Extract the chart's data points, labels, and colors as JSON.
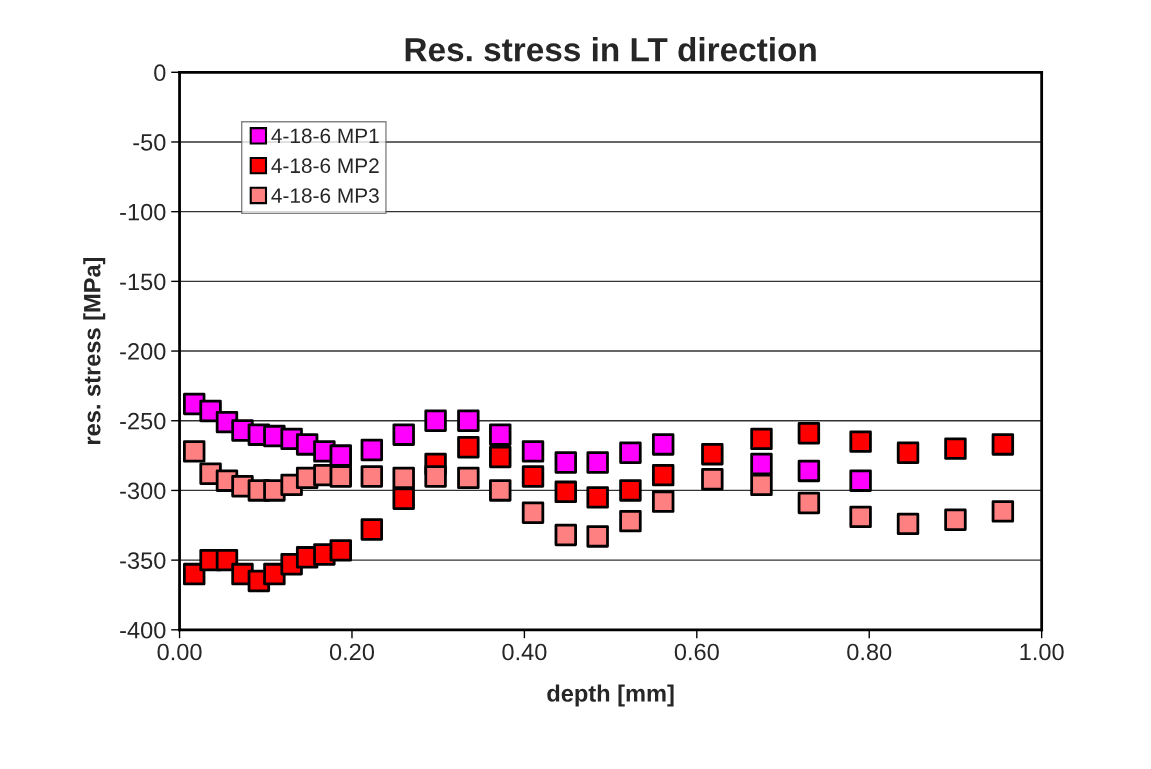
{
  "chart_data": {
    "type": "scatter",
    "title": "Res. stress in LT direction",
    "xlabel": "depth [mm]",
    "ylabel": "res. stress [MPa]",
    "xlim": [
      0,
      1
    ],
    "xticks": [
      {
        "value": 0,
        "label": "0.00"
      },
      {
        "value": 0.2,
        "label": "0.20"
      },
      {
        "value": 0.4,
        "label": "0.40"
      },
      {
        "value": 0.6,
        "label": "0.60"
      },
      {
        "value": 0.8,
        "label": "0.80"
      },
      {
        "value": 1,
        "label": "1.00"
      }
    ],
    "ylim": [
      -400,
      0
    ],
    "yticks": [
      -400,
      -350,
      -300,
      -250,
      -200,
      -150,
      -100,
      -50,
      0
    ],
    "grid": "y",
    "legend": "top left",
    "marker": "square",
    "series": [
      {
        "name": "4-18-6 MP1",
        "color": "#ff00ff",
        "x": [
          0.017,
          0.036,
          0.055,
          0.073,
          0.092,
          0.11,
          0.13,
          0.148,
          0.168,
          0.187,
          0.223,
          0.26,
          0.297,
          0.335,
          0.372,
          0.41,
          0.448,
          0.485,
          0.523,
          0.561,
          0.618,
          0.675,
          0.73,
          0.79
        ],
        "values": [
          -238,
          -243,
          -251,
          -257,
          -260,
          -261,
          -263,
          -267,
          -272,
          -275,
          -271,
          -260,
          -250,
          -250,
          -260,
          -272,
          -280,
          -280,
          -273,
          -267,
          null,
          -281,
          -286,
          -293
        ]
      },
      {
        "name": "4-18-6 MP2",
        "color": "#ff0000",
        "x": [
          0.017,
          0.036,
          0.055,
          0.073,
          0.092,
          0.11,
          0.13,
          0.148,
          0.168,
          0.187,
          0.223,
          0.26,
          0.297,
          0.335,
          0.372,
          0.41,
          0.448,
          0.485,
          0.523,
          0.561,
          0.618,
          0.675,
          0.73,
          0.79,
          0.845,
          0.9,
          0.955
        ],
        "values": [
          -360,
          -350,
          -350,
          -360,
          -365,
          -360,
          -353,
          -348,
          -346,
          -343,
          -328,
          -306,
          -281,
          -269,
          -276,
          -290,
          -301,
          -305,
          -300,
          -289,
          -274,
          -263,
          -259,
          -265,
          -273,
          -270,
          -267
        ]
      },
      {
        "name": "4-18-6 MP3",
        "color": "#ff8080",
        "x": [
          0.017,
          0.036,
          0.055,
          0.073,
          0.092,
          0.11,
          0.13,
          0.148,
          0.168,
          0.187,
          0.223,
          0.26,
          0.297,
          0.335,
          0.372,
          0.41,
          0.448,
          0.485,
          0.523,
          0.561,
          0.618,
          0.675,
          0.73,
          0.79,
          0.845,
          0.9,
          0.955
        ],
        "values": [
          -272,
          -288,
          -293,
          -297,
          -300,
          -300,
          -296,
          -291,
          -289,
          -290,
          -290,
          -291,
          -290,
          -291,
          -300,
          -316,
          -332,
          -333,
          -322,
          -308,
          -292,
          -296,
          -309,
          -319,
          -324,
          -321,
          -315
        ]
      }
    ]
  }
}
